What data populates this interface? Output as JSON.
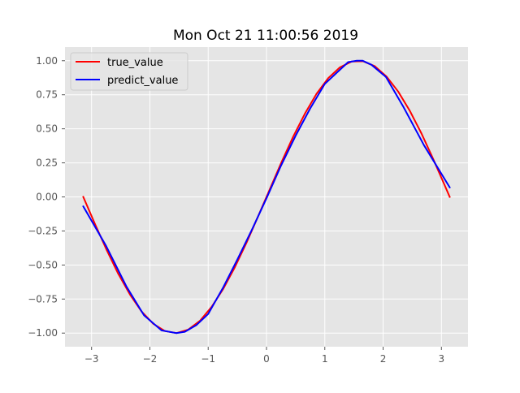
{
  "chart_data": {
    "type": "line",
    "title": "Mon Oct 21 11:00:56 2019",
    "xlabel": "",
    "ylabel": "",
    "xlim": [
      -3.4557,
      3.4557
    ],
    "ylim": [
      -1.1,
      1.1
    ],
    "xticks": [
      -3,
      -2,
      -1,
      0,
      1,
      2,
      3
    ],
    "xtick_labels": [
      "−3",
      "−2",
      "−1",
      "0",
      "1",
      "2",
      "3"
    ],
    "yticks": [
      -1.0,
      -0.75,
      -0.5,
      -0.25,
      0.0,
      0.25,
      0.5,
      0.75,
      1.0
    ],
    "ytick_labels": [
      "−1.00",
      "−0.75",
      "−0.50",
      "−0.25",
      "0.00",
      "0.25",
      "0.50",
      "0.75",
      "1.00"
    ],
    "grid": true,
    "legend": "upper left",
    "series": [
      {
        "name": "true_value",
        "color": "#ff0000",
        "x": [
          -3.1416,
          -2.9416,
          -2.7416,
          -2.5416,
          -2.3416,
          -2.1416,
          -1.9416,
          -1.7416,
          -1.5416,
          -1.3416,
          -1.1416,
          -0.9416,
          -0.7416,
          -0.5416,
          -0.3416,
          -0.1416,
          0.0584,
          0.2584,
          0.4584,
          0.6584,
          0.8584,
          1.0584,
          1.2584,
          1.4584,
          1.6584,
          1.8584,
          2.0584,
          2.2584,
          2.4584,
          2.6584,
          2.8584,
          3.0584,
          3.1416
        ],
        "y": [
          0.0,
          -0.199,
          -0.389,
          -0.565,
          -0.717,
          -0.842,
          -0.932,
          -0.985,
          -1.0,
          -0.974,
          -0.91,
          -0.808,
          -0.675,
          -0.516,
          -0.335,
          -0.141,
          0.058,
          0.255,
          0.443,
          0.612,
          0.757,
          0.872,
          0.951,
          0.994,
          0.996,
          0.959,
          0.884,
          0.773,
          0.632,
          0.465,
          0.279,
          0.083,
          0.0
        ]
      },
      {
        "name": "predict_value",
        "color": "#0000ff",
        "x": [
          -3.1416,
          -2.75,
          -2.4,
          -2.1,
          -1.8,
          -1.55,
          -1.4,
          -1.2,
          -1.0,
          -0.75,
          -0.5,
          -0.25,
          0.0,
          0.25,
          0.5,
          0.75,
          1.0,
          1.2,
          1.4,
          1.55,
          1.65,
          1.8,
          2.05,
          2.35,
          2.7,
          3.1416
        ],
        "y": [
          -0.07,
          -0.36,
          -0.66,
          -0.87,
          -0.98,
          -1.0,
          -0.99,
          -0.94,
          -0.86,
          -0.67,
          -0.46,
          -0.24,
          -0.01,
          0.23,
          0.45,
          0.65,
          0.83,
          0.91,
          0.99,
          1.0,
          1.0,
          0.97,
          0.88,
          0.66,
          0.38,
          0.07
        ]
      }
    ]
  }
}
